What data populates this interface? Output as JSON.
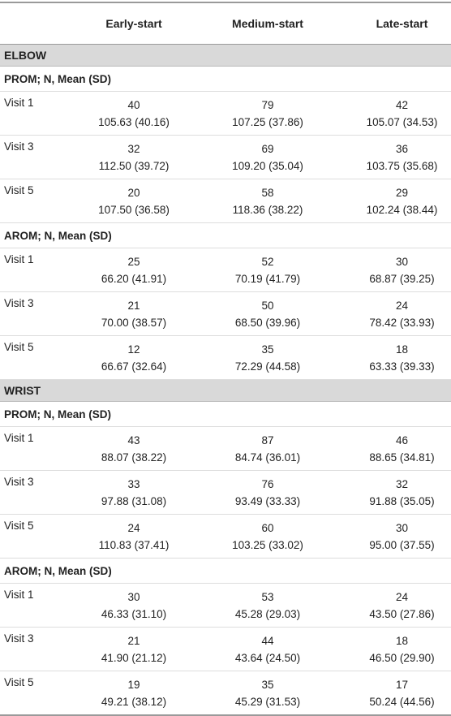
{
  "header": {
    "columns": [
      "Early-start",
      "Medium-start",
      "Late-start"
    ]
  },
  "sections": [
    {
      "title": "ELBOW",
      "groups": [
        {
          "label": "PROM; N, Mean (SD)",
          "rows": [
            {
              "label": "Visit 1",
              "cells": [
                {
                  "n": 40,
                  "mean_sd": "105.63 (40.16)"
                },
                {
                  "n": 79,
                  "mean_sd": "107.25 (37.86)"
                },
                {
                  "n": 42,
                  "mean_sd": "105.07 (34.53)"
                }
              ]
            },
            {
              "label": "Visit 3",
              "cells": [
                {
                  "n": 32,
                  "mean_sd": "112.50 (39.72)"
                },
                {
                  "n": 69,
                  "mean_sd": "109.20 (35.04)"
                },
                {
                  "n": 36,
                  "mean_sd": "103.75 (35.68)"
                }
              ]
            },
            {
              "label": "Visit 5",
              "cells": [
                {
                  "n": 20,
                  "mean_sd": "107.50 (36.58)"
                },
                {
                  "n": 58,
                  "mean_sd": "118.36 (38.22)"
                },
                {
                  "n": 29,
                  "mean_sd": "102.24 (38.44)"
                }
              ]
            }
          ]
        },
        {
          "label": "AROM; N, Mean (SD)",
          "rows": [
            {
              "label": "Visit 1",
              "cells": [
                {
                  "n": 25,
                  "mean_sd": "66.20 (41.91)"
                },
                {
                  "n": 52,
                  "mean_sd": "70.19 (41.79)"
                },
                {
                  "n": 30,
                  "mean_sd": "68.87 (39.25)"
                }
              ]
            },
            {
              "label": "Visit 3",
              "cells": [
                {
                  "n": 21,
                  "mean_sd": "70.00 (38.57)"
                },
                {
                  "n": 50,
                  "mean_sd": "68.50 (39.96)"
                },
                {
                  "n": 24,
                  "mean_sd": "78.42 (33.93)"
                }
              ]
            },
            {
              "label": "Visit 5",
              "cells": [
                {
                  "n": 12,
                  "mean_sd": "66.67 (32.64)"
                },
                {
                  "n": 35,
                  "mean_sd": "72.29 (44.58)"
                },
                {
                  "n": 18,
                  "mean_sd": "63.33 (39.33)"
                }
              ]
            }
          ]
        }
      ]
    },
    {
      "title": "WRIST",
      "groups": [
        {
          "label": "PROM; N, Mean (SD)",
          "rows": [
            {
              "label": "Visit 1",
              "cells": [
                {
                  "n": 43,
                  "mean_sd": "88.07 (38.22)"
                },
                {
                  "n": 87,
                  "mean_sd": "84.74 (36.01)"
                },
                {
                  "n": 46,
                  "mean_sd": "88.65 (34.81)"
                }
              ]
            },
            {
              "label": "Visit 3",
              "cells": [
                {
                  "n": 33,
                  "mean_sd": "97.88 (31.08)"
                },
                {
                  "n": 76,
                  "mean_sd": "93.49 (33.33)"
                },
                {
                  "n": 32,
                  "mean_sd": "91.88 (35.05)"
                }
              ]
            },
            {
              "label": "Visit 5",
              "cells": [
                {
                  "n": 24,
                  "mean_sd": "110.83 (37.41)"
                },
                {
                  "n": 60,
                  "mean_sd": "103.25 (33.02)"
                },
                {
                  "n": 30,
                  "mean_sd": "95.00 (37.55)"
                }
              ]
            }
          ]
        },
        {
          "label": "AROM; N, Mean (SD)",
          "rows": [
            {
              "label": "Visit 1",
              "cells": [
                {
                  "n": 30,
                  "mean_sd": "46.33 (31.10)"
                },
                {
                  "n": 53,
                  "mean_sd": "45.28 (29.03)"
                },
                {
                  "n": 24,
                  "mean_sd": "43.50 (27.86)"
                }
              ]
            },
            {
              "label": "Visit 3",
              "cells": [
                {
                  "n": 21,
                  "mean_sd": "41.90 (21.12)"
                },
                {
                  "n": 44,
                  "mean_sd": "43.64 (24.50)"
                },
                {
                  "n": 18,
                  "mean_sd": "46.50 (29.90)"
                }
              ]
            },
            {
              "label": "Visit 5",
              "cells": [
                {
                  "n": 19,
                  "mean_sd": "49.21 (38.12)"
                },
                {
                  "n": 35,
                  "mean_sd": "45.29 (31.53)"
                },
                {
                  "n": 17,
                  "mean_sd": "50.24 (44.56)"
                }
              ]
            }
          ]
        }
      ]
    }
  ]
}
